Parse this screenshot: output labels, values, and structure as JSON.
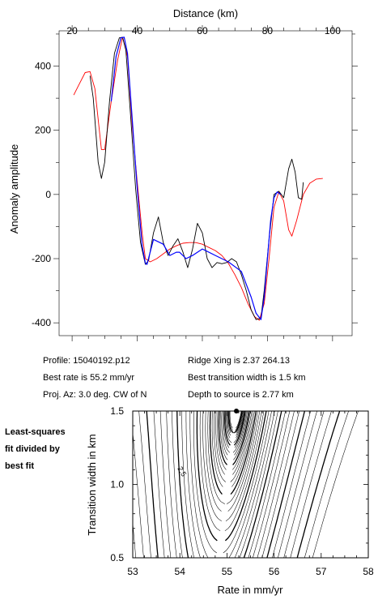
{
  "chart_data": [
    {
      "type": "line",
      "xlabel": "Distance (km)",
      "ylabel": "Anomaly amplitude",
      "xlim": [
        16,
        106
      ],
      "ylim": [
        -440,
        510
      ],
      "xticks": [
        20,
        40,
        60,
        80,
        100
      ],
      "xtick_labels": [
        "20",
        "40",
        "60",
        "80",
        "100"
      ],
      "yticks": [
        -400,
        -200,
        0,
        200,
        400
      ],
      "ytick_labels": [
        "-400",
        "-200",
        "0",
        "200",
        "400"
      ],
      "grid": false,
      "series": [
        {
          "color": "#ff0000",
          "x": [
            20.5,
            22,
            24,
            25.5,
            27,
            29,
            30,
            32,
            34,
            35.5,
            37,
            38.5,
            40,
            41.5,
            42.5,
            44,
            46,
            48,
            50,
            52,
            54,
            56,
            58,
            60,
            62,
            64,
            66,
            68,
            70,
            72,
            74,
            76,
            77.5,
            79,
            80.5,
            82,
            83.5,
            85,
            86.5,
            87.5,
            89,
            91,
            93,
            95,
            97
          ],
          "y": [
            310,
            340,
            380,
            383,
            330,
            140,
            140,
            290,
            420,
            490,
            430,
            210,
            40,
            -120,
            -200,
            -210,
            -200,
            -185,
            -170,
            -160,
            -152,
            -150,
            -150,
            -155,
            -165,
            -175,
            -190,
            -215,
            -250,
            -290,
            -340,
            -380,
            -392,
            -340,
            -200,
            -40,
            8,
            -20,
            -110,
            -130,
            -80,
            0,
            35,
            48,
            50
          ]
        },
        {
          "color": "#000000",
          "x": [
            25.5,
            26.5,
            28,
            29,
            30,
            31.5,
            33,
            34.5,
            35.5,
            36.5,
            38,
            39.5,
            41,
            42.5,
            43.5,
            45,
            46.5,
            48,
            49.5,
            51,
            52.5,
            54,
            55.5,
            57,
            58.5,
            60,
            61.5,
            63,
            64.5,
            66,
            67.5,
            69,
            70.5,
            72,
            73.5,
            75,
            76.5,
            78,
            79,
            80.5,
            82,
            83.5,
            85,
            86.5,
            87.5,
            88.5,
            89.5,
            90.5,
            91
          ],
          "y": [
            370,
            300,
            100,
            50,
            100,
            290,
            440,
            488,
            490,
            450,
            240,
            20,
            -150,
            -218,
            -205,
            -120,
            -70,
            -150,
            -190,
            -160,
            -138,
            -178,
            -228,
            -170,
            -90,
            -120,
            -200,
            -228,
            -212,
            -216,
            -212,
            -200,
            -210,
            -250,
            -300,
            -360,
            -390,
            -385,
            -300,
            -140,
            0,
            10,
            -10,
            80,
            110,
            70,
            -10,
            -15,
            38
          ]
        },
        {
          "color": "#0000ff",
          "x": [
            32,
            33.5,
            35,
            36,
            37,
            38.5,
            40,
            41.5,
            42.5,
            43,
            45,
            48,
            50,
            52,
            53,
            55,
            57,
            60,
            64,
            68,
            72,
            75,
            76.5,
            78,
            79,
            80,
            81,
            82,
            83,
            84
          ],
          "y": [
            290,
            430,
            488,
            490,
            440,
            230,
            20,
            -160,
            -215,
            -218,
            -140,
            -155,
            -190,
            -180,
            -180,
            -200,
            -190,
            -170,
            -190,
            -210,
            -240,
            -320,
            -370,
            -390,
            -320,
            -200,
            -80,
            -10,
            8,
            0
          ]
        }
      ]
    },
    {
      "type": "contour",
      "xlabel": "Rate in mm/yr",
      "ylabel": "Transition width in km",
      "xlim": [
        53,
        58
      ],
      "ylim": [
        0.5,
        1.5
      ],
      "xticks": [
        53,
        54,
        55,
        56,
        57,
        58
      ],
      "xtick_labels": [
        "53",
        "54",
        "55",
        "56",
        "57",
        "58"
      ],
      "yticks": [
        0.5,
        1.0,
        1.5
      ],
      "ytick_labels": [
        "0.5",
        "1.0",
        "1.5"
      ],
      "best_point": {
        "x": 55.2,
        "y": 1.5
      },
      "contour_labels": [
        {
          "text": "2.5",
          "x": 54.0,
          "y": 1.08
        }
      ]
    }
  ],
  "info": {
    "profile": "Profile: 15040192.p12",
    "ridge": "Ridge Xing is 2.37 264.13",
    "rate": "Best rate is 55.2 mm/yr",
    "transition": "Best transition width is 1.5 km",
    "azimuth": "Proj. Az: 3.0 deg. CW of N",
    "depth": "Depth to source is    2.77 km"
  },
  "note": {
    "line1": "Least-squares",
    "line2": "fit divided by",
    "line3": "best fit"
  }
}
